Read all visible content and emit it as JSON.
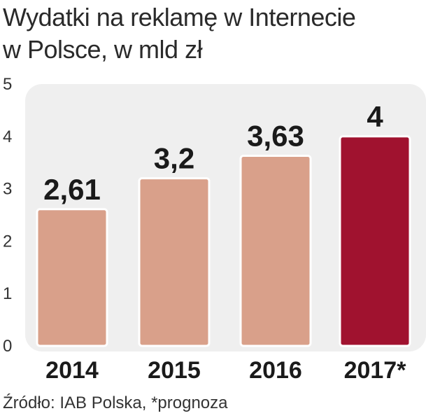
{
  "chart_data": {
    "type": "bar",
    "title_lines": [
      "Wydatki na reklamę w Internecie",
      "w Polsce, w mld zł"
    ],
    "categories": [
      "2014",
      "2015",
      "2016",
      "2017*"
    ],
    "values": [
      2.61,
      3.2,
      3.63,
      4
    ],
    "value_labels": [
      "2,61",
      "3,2",
      "3,63",
      "4"
    ],
    "yticks": [
      "0",
      "1",
      "2",
      "3",
      "4",
      "5"
    ],
    "ylim": [
      0,
      5
    ],
    "xlabel": "",
    "ylabel": "",
    "grid": false,
    "colors": {
      "bar": "#d9a08a",
      "bar_highlight": "#a0122f",
      "bar_border": "#ffffff",
      "plot_background": "#efefef"
    },
    "highlight_index": 3
  },
  "source": "Źródło: IAB Polska, *prognoza"
}
